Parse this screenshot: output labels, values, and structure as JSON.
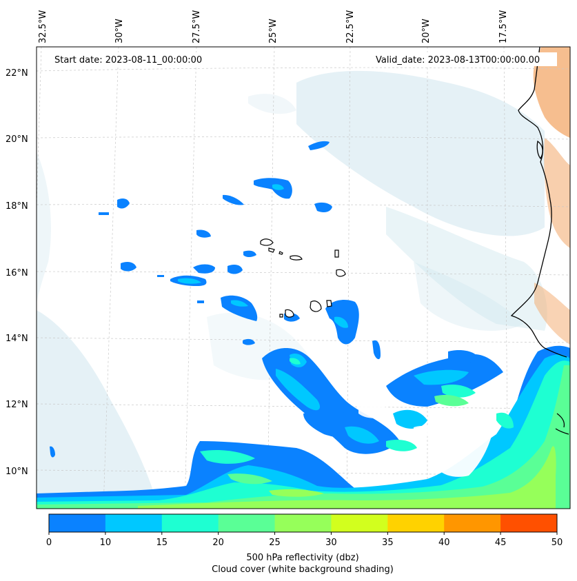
{
  "map": {
    "start_date": "Start date: 2023-08-11_00:00:00",
    "valid_date": "Valid_date: 2023-08-13T00:00:00.00"
  },
  "lon_labels": [
    "32.5°W",
    "30°W",
    "27.5°W",
    "25°W",
    "22.5°W",
    "20°W",
    "17.5°W"
  ],
  "lat_labels": [
    "22°N",
    "20°N",
    "18°N",
    "16°N",
    "14°N",
    "12°N",
    "10°N"
  ],
  "colorbar": {
    "ticks": [
      "0",
      "10",
      "15",
      "20",
      "25",
      "30",
      "35",
      "40",
      "45",
      "50"
    ],
    "colors": [
      "#0a82ff",
      "#00c8ff",
      "#1effd2",
      "#5aff96",
      "#96ff5a",
      "#d2ff1e",
      "#ffd200",
      "#ff9600",
      "#ff5000"
    ],
    "label_line1": "500 hPa reflectivity (dbz)",
    "label_line2": "Cloud cover (white background shading)"
  },
  "colors": {
    "cloud": "#cfe6ee",
    "land_warm": "#f3a86a",
    "coast": "#000000",
    "grid": "#c8c8c8"
  }
}
